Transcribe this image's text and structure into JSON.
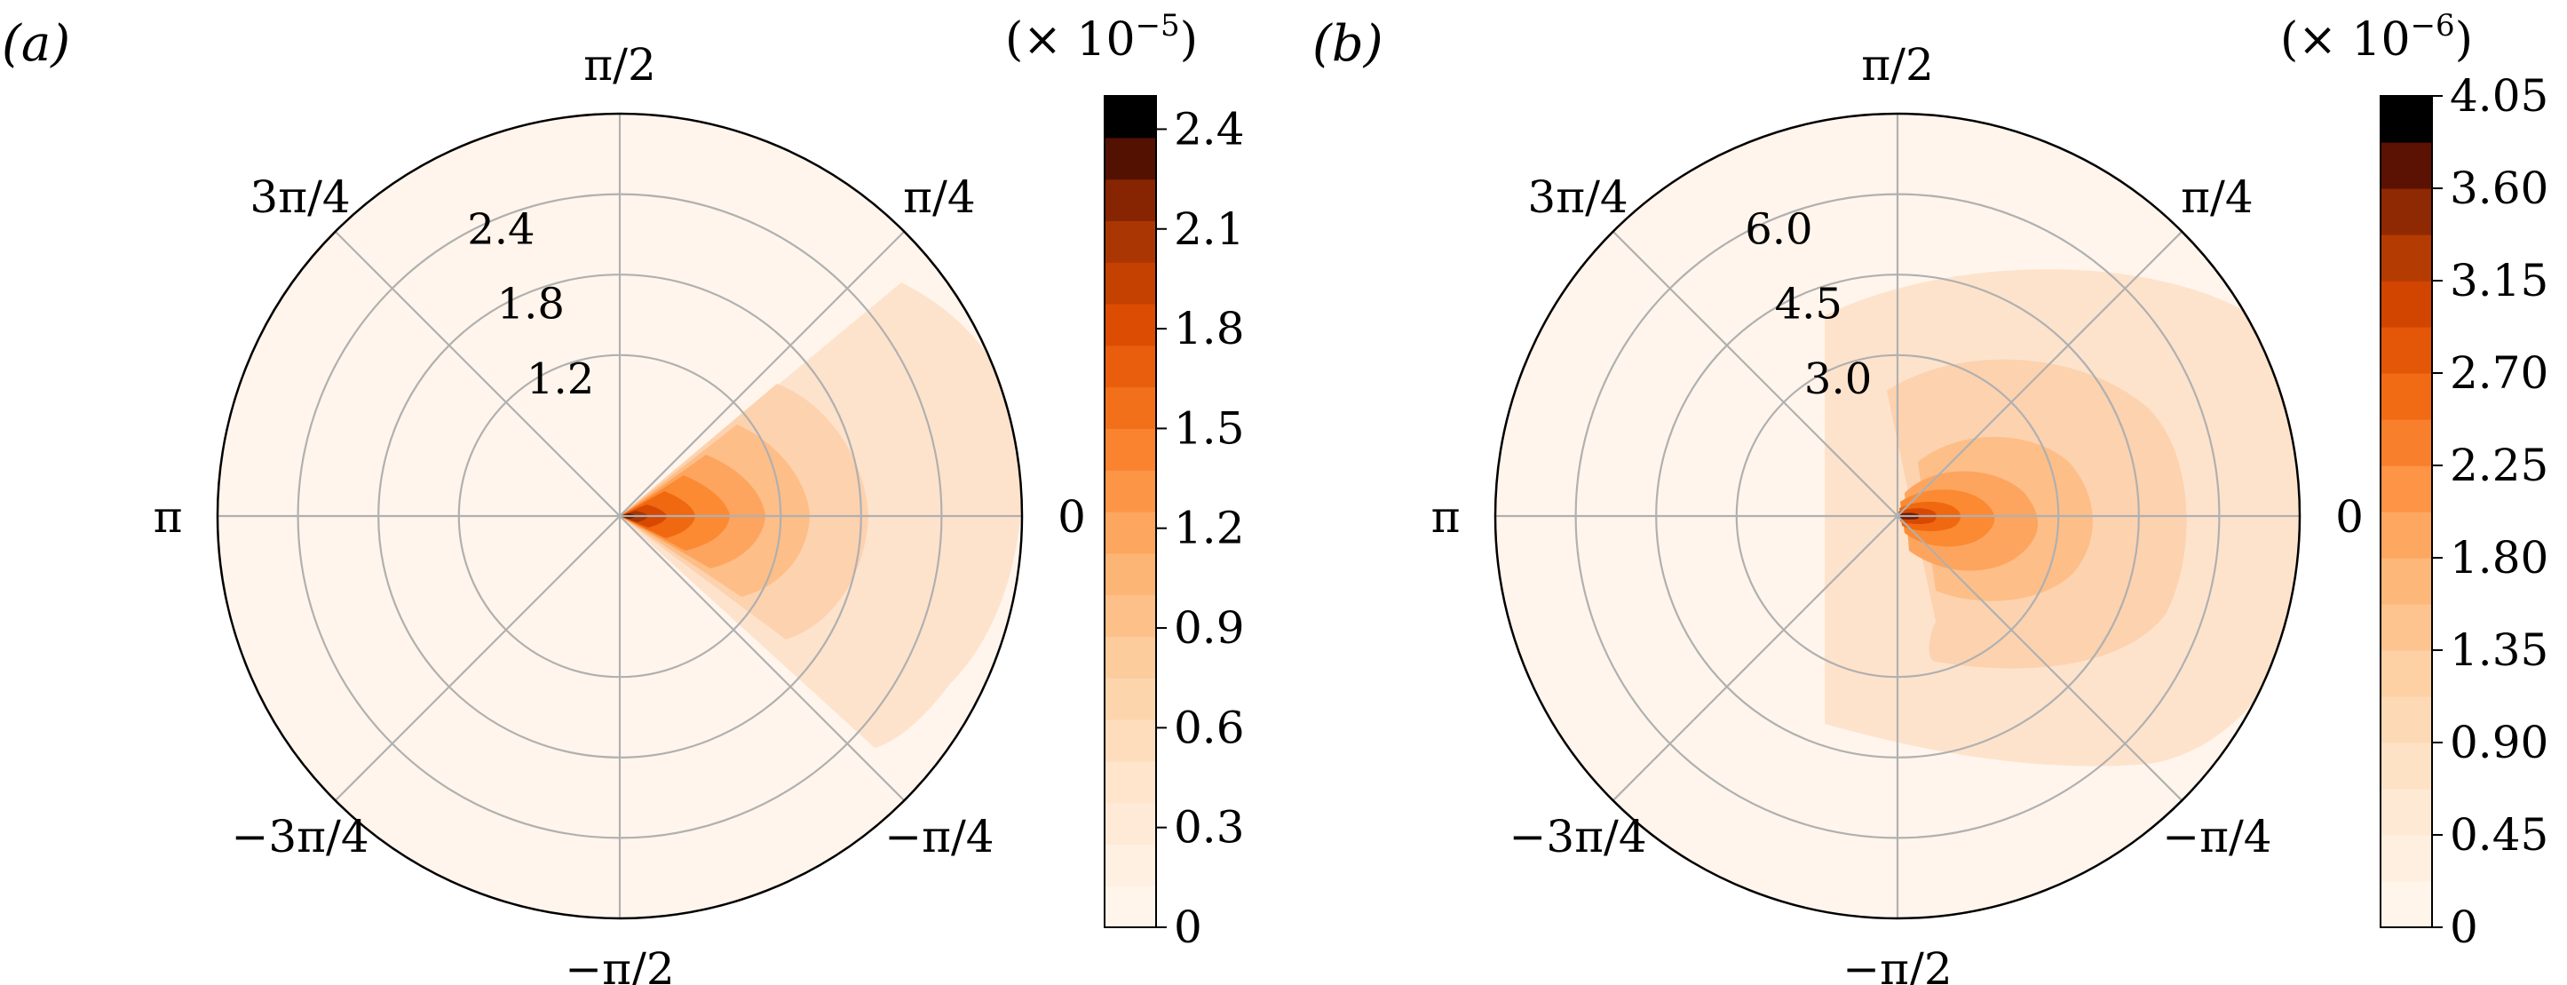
{
  "chart_data": [
    {
      "type": "heatmap",
      "projection": "polar",
      "panel_label": "(a)",
      "angular_ticks": [
        "0",
        "π/4",
        "π/2",
        "3π/4",
        "π",
        "−3π/4",
        "−π/2",
        "−π/4"
      ],
      "radial_ticks": [
        "1.2",
        "1.8",
        "2.4"
      ],
      "radial_tick_values": [
        1.2,
        1.8,
        2.4
      ],
      "colorbar": {
        "exponent_label": "(× 10",
        "exponent": "−5",
        "exponent_close": ")",
        "ticks": [
          "0",
          "0.3",
          "0.6",
          "0.9",
          "1.2",
          "1.5",
          "1.8",
          "2.1",
          "2.4"
        ],
        "tick_values": [
          0,
          0.3,
          0.6,
          0.9,
          1.2,
          1.5,
          1.8,
          2.1,
          2.4
        ],
        "min": 0,
        "max": 2.5,
        "levels": 20
      },
      "grid": true
    },
    {
      "type": "heatmap",
      "projection": "polar",
      "panel_label": "(b)",
      "angular_ticks": [
        "0",
        "π/4",
        "π/2",
        "3π/4",
        "π",
        "−3π/4",
        "−π/2",
        "−π/4"
      ],
      "radial_ticks": [
        "3.0",
        "4.5",
        "6.0"
      ],
      "radial_tick_values": [
        3.0,
        4.5,
        6.0
      ],
      "colorbar": {
        "exponent_label": "(× 10",
        "exponent": "−6",
        "exponent_close": ")",
        "ticks": [
          "0",
          "0.45",
          "0.90",
          "1.35",
          "1.80",
          "2.25",
          "2.70",
          "3.15",
          "3.60",
          "4.05"
        ],
        "tick_values": [
          0,
          0.45,
          0.9,
          1.35,
          1.8,
          2.25,
          2.7,
          3.15,
          3.6,
          4.05
        ],
        "min": 0,
        "max": 4.05,
        "levels": 18
      },
      "grid": true
    }
  ]
}
